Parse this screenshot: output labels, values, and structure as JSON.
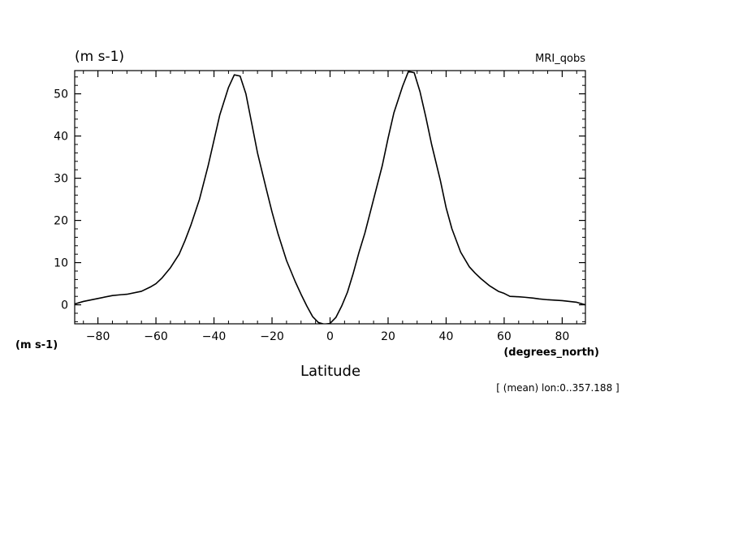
{
  "chart_data": {
    "type": "line",
    "title_left": "(m s-1)",
    "title_right": "MRI_qobs",
    "xlabel": "Latitude",
    "xunits": "(degrees_north)",
    "yunits": "(m s-1)",
    "annotation": "[ (mean) lon:0..357.188 ]",
    "xlim": [
      -88,
      88
    ],
    "ylim": [
      -4.5,
      55.5
    ],
    "xticks": [
      -80,
      -60,
      -40,
      -20,
      0,
      20,
      40,
      60,
      80
    ],
    "xtick_labels": [
      "−80",
      "−60",
      "−40",
      "−20",
      "0",
      "20",
      "40",
      "60",
      "80"
    ],
    "yticks": [
      0,
      10,
      20,
      30,
      40,
      50
    ],
    "ytick_labels": [
      "0",
      "10",
      "20",
      "30",
      "40",
      "50"
    ],
    "grid": false,
    "series": [
      {
        "x": [
          -88,
          -85,
          -80,
          -75,
          -72,
          -70,
          -65,
          -62,
          -60,
          -58,
          -55,
          -52,
          -50,
          -48,
          -45,
          -42,
          -40,
          -38,
          -35,
          -33,
          -31,
          -29,
          -27,
          -25,
          -22,
          -20,
          -18,
          -15,
          -12,
          -10,
          -8,
          -6,
          -4,
          -2,
          0,
          2,
          4,
          6,
          8,
          10,
          12,
          15,
          18,
          20,
          22,
          25,
          27,
          29,
          31,
          33,
          35,
          38,
          40,
          42,
          45,
          48,
          50,
          52,
          55,
          58,
          60,
          62,
          65,
          67,
          70,
          72,
          75,
          80,
          85,
          88
        ],
        "y": [
          0.2,
          0.8,
          1.5,
          2.2,
          2.4,
          2.5,
          3.2,
          4.2,
          5.0,
          6.3,
          8.8,
          12.0,
          15.2,
          18.8,
          25.0,
          33.0,
          39.0,
          45.0,
          51.5,
          54.5,
          54.2,
          50.0,
          43.0,
          36.0,
          27.5,
          22.0,
          17.0,
          10.5,
          5.5,
          2.5,
          -0.3,
          -2.8,
          -4.2,
          -4.6,
          -4.4,
          -3.0,
          -0.3,
          3.0,
          7.5,
          12.5,
          17.0,
          25.0,
          33.0,
          39.5,
          45.5,
          51.8,
          55.3,
          55.0,
          50.5,
          44.5,
          38.0,
          29.5,
          23.0,
          18.0,
          12.5,
          9.0,
          7.5,
          6.2,
          4.5,
          3.2,
          2.7,
          2.0,
          1.9,
          1.8,
          1.6,
          1.4,
          1.2,
          1.0,
          0.6,
          0.0
        ]
      }
    ]
  }
}
